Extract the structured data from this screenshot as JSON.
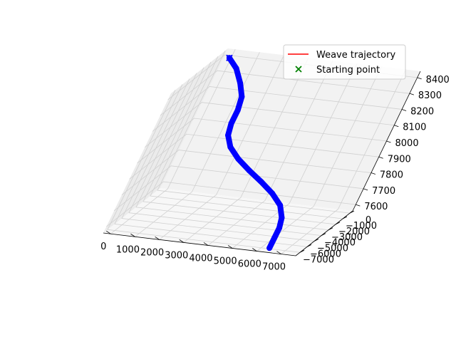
{
  "chart_data": {
    "type": "line",
    "projection": "3d",
    "grid": true,
    "legend_placement": "upper-right",
    "legend": [
      {
        "label": "Weave trajectory",
        "marker": "line",
        "color": "#ff0000"
      },
      {
        "label": "Starting point",
        "marker": "x",
        "color": "#008000"
      }
    ],
    "x_axis": {
      "ticks": [
        0,
        1000,
        2000,
        3000,
        4000,
        5000,
        6000,
        7000
      ],
      "range": [
        -300,
        7600
      ]
    },
    "y_axis": {
      "ticks": [
        0,
        -1000,
        -2000,
        -3000,
        -4000,
        -5000,
        -6000,
        -7000
      ],
      "range": [
        -7600,
        400
      ]
    },
    "z_axis": {
      "ticks": [
        7600,
        7700,
        7800,
        7900,
        8000,
        8100,
        8200,
        8300,
        8400
      ],
      "range": [
        7560,
        8440
      ]
    },
    "tick_labels": {
      "x": [
        "0",
        "1000",
        "2000",
        "3000",
        "4000",
        "5000",
        "6000",
        "7000"
      ],
      "y": [
        "0",
        "−1000",
        "−2000",
        "−3000",
        "−4000",
        "−5000",
        "−6000",
        "−7000"
      ],
      "z": [
        "7600",
        "7700",
        "7800",
        "7900",
        "8000",
        "8100",
        "8200",
        "8300",
        "8400"
      ]
    },
    "series": [
      {
        "name": "Weave trajectory",
        "color": "#0000ff",
        "line_color": "#ff0000",
        "points": [
          {
            "x": 0,
            "y": 0,
            "z": 8400
          },
          {
            "x": 500,
            "y": -200,
            "z": 8350
          },
          {
            "x": 1000,
            "y": -600,
            "z": 8280
          },
          {
            "x": 1400,
            "y": -1100,
            "z": 8220
          },
          {
            "x": 1600,
            "y": -1700,
            "z": 8160
          },
          {
            "x": 1700,
            "y": -2300,
            "z": 8100
          },
          {
            "x": 1900,
            "y": -2900,
            "z": 8050
          },
          {
            "x": 2300,
            "y": -3400,
            "z": 8000
          },
          {
            "x": 2900,
            "y": -3800,
            "z": 7950
          },
          {
            "x": 3600,
            "y": -4100,
            "z": 7900
          },
          {
            "x": 4300,
            "y": -4300,
            "z": 7850
          },
          {
            "x": 5000,
            "y": -4600,
            "z": 7800
          },
          {
            "x": 5600,
            "y": -5000,
            "z": 7750
          },
          {
            "x": 6000,
            "y": -5600,
            "z": 7700
          },
          {
            "x": 6200,
            "y": -6200,
            "z": 7660
          },
          {
            "x": 6300,
            "y": -6800,
            "z": 7620
          },
          {
            "x": 6400,
            "y": -7400,
            "z": 7580
          }
        ]
      }
    ],
    "start_point": {
      "x": 0,
      "y": 0,
      "z": 8400
    }
  }
}
